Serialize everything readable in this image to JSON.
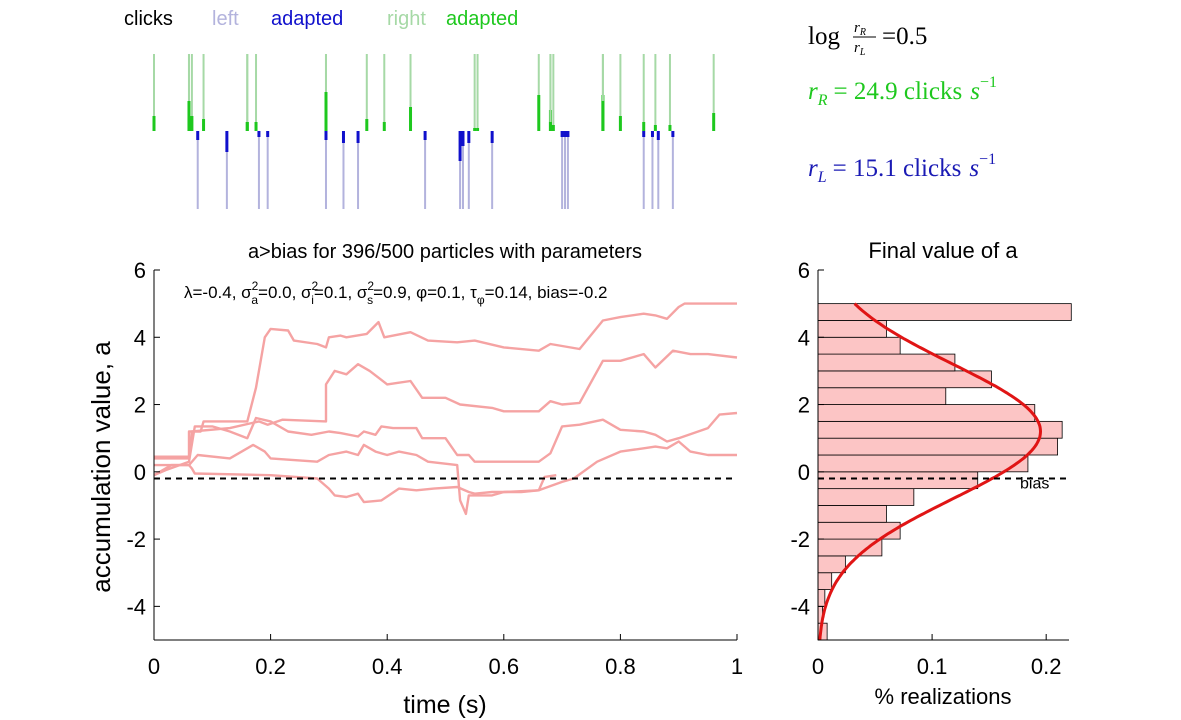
{
  "legend": {
    "clicks": "clicks",
    "left": "left",
    "left_adapted": "adapted",
    "right": "right",
    "right_adapted": "adapted"
  },
  "formulas": {
    "ratio_prefix": "log",
    "ratio_num": "r",
    "ratio_num_sub": "R",
    "ratio_den": "r",
    "ratio_den_sub": "L",
    "ratio_value": "=0.5",
    "rR_sym": "r",
    "rR_sub": "R",
    "rR_value": "= 24.9 clicks",
    "rR_unit": "s",
    "rR_exp": "−1",
    "rL_sym": "r",
    "rL_sub": "L",
    "rL_value": "= 15.1 clicks",
    "rL_unit": "s",
    "rL_exp": "−1"
  },
  "colors": {
    "left_light": "#b3b3dd",
    "left_dark": "#1010cc",
    "right_light": "#a6d9a6",
    "right_dark": "#1ec81e",
    "traj": "#f5a3a3",
    "hist_fill": "#fcc5c5",
    "fit": "#e01515",
    "rR_text": "#1ec81e",
    "rL_text": "#1a1ab4"
  },
  "chart_data": [
    {
      "type": "raster",
      "title": "",
      "x_range": [
        0,
        1
      ],
      "series": [
        {
          "name": "right",
          "clicks": [
            0.0,
            0.06,
            0.06,
            0.065,
            0.085,
            0.16,
            0.16,
            0.175,
            0.295,
            0.295,
            0.365,
            0.395,
            0.44,
            0.55,
            0.555,
            0.66,
            0.68,
            0.68,
            0.685,
            0.77,
            0.77,
            0.8,
            0.84,
            0.86,
            0.885,
            0.96
          ],
          "adapted": [
            0.05,
            0.045,
            0.1,
            0.05,
            0.04,
            0.03,
            0.03,
            0.03,
            0.1,
            0.13,
            0.04,
            0.03,
            0.08,
            0.01,
            0.01,
            0.12,
            0.07,
            0.03,
            0.02,
            0.12,
            0.1,
            0.05,
            0.03,
            0.02,
            0.02,
            0.06
          ]
        },
        {
          "name": "left",
          "clicks": [
            0.075,
            0.125,
            0.18,
            0.195,
            0.295,
            0.325,
            0.35,
            0.465,
            0.525,
            0.53,
            0.54,
            0.58,
            0.7,
            0.705,
            0.71,
            0.84,
            0.855,
            0.865,
            0.89
          ],
          "adapted": [
            0.03,
            0.07,
            0.02,
            0.02,
            0.03,
            0.04,
            0.04,
            0.03,
            0.1,
            0.05,
            0.04,
            0.04,
            0.02,
            0.02,
            0.02,
            0.02,
            0.02,
            0.03,
            0.02
          ]
        }
      ]
    },
    {
      "type": "line",
      "title": "a>bias for 396/500 particles with parameters",
      "subtitle": "λ=-0.4, σ²a=0.0, σ²i=0.1, σ²s=0.9, φ=0.1, τφ=0.14, bias=-0.2",
      "xlabel": "time (s)",
      "ylabel": "accumulation value, a",
      "xlim": [
        0,
        1
      ],
      "ylim": [
        -5,
        6
      ],
      "xticks": [
        "0",
        "0.2",
        "0.4",
        "0.6",
        "0.8",
        "1"
      ],
      "yticks": [
        "-4",
        "-2",
        "0",
        "2",
        "4",
        "6"
      ],
      "bias": -0.2,
      "series": [
        {
          "points": [
            [
              0,
              0.4
            ],
            [
              0.06,
              0.4
            ],
            [
              0.06,
              1.2
            ],
            [
              0.08,
              1.2
            ],
            [
              0.085,
              1.5
            ],
            [
              0.16,
              1.5
            ],
            [
              0.175,
              2.5
            ],
            [
              0.19,
              4.0
            ],
            [
              0.2,
              4.25
            ],
            [
              0.23,
              4.2
            ],
            [
              0.24,
              3.9
            ],
            [
              0.28,
              3.8
            ],
            [
              0.295,
              3.7
            ],
            [
              0.3,
              4.0
            ],
            [
              0.32,
              4.05
            ],
            [
              0.33,
              4.0
            ],
            [
              0.365,
              4.1
            ],
            [
              0.385,
              4.45
            ],
            [
              0.395,
              4.0
            ],
            [
              0.44,
              4.15
            ],
            [
              0.47,
              3.9
            ],
            [
              0.52,
              3.85
            ],
            [
              0.55,
              3.9
            ],
            [
              0.6,
              3.7
            ],
            [
              0.66,
              3.6
            ],
            [
              0.68,
              3.8
            ],
            [
              0.73,
              3.65
            ],
            [
              0.77,
              4.5
            ],
            [
              0.8,
              4.6
            ],
            [
              0.84,
              4.7
            ],
            [
              0.86,
              4.65
            ],
            [
              0.88,
              4.55
            ],
            [
              0.9,
              4.9
            ],
            [
              0.91,
              5.0
            ],
            [
              1.0,
              5.0
            ]
          ]
        },
        {
          "points": [
            [
              0,
              0.45
            ],
            [
              0.06,
              0.45
            ],
            [
              0.065,
              1.2
            ],
            [
              0.13,
              1.3
            ],
            [
              0.18,
              1.5
            ],
            [
              0.195,
              1.4
            ],
            [
              0.22,
              1.55
            ],
            [
              0.295,
              1.5
            ],
            [
              0.295,
              2.6
            ],
            [
              0.31,
              3.0
            ],
            [
              0.33,
              2.9
            ],
            [
              0.35,
              3.2
            ],
            [
              0.37,
              3.0
            ],
            [
              0.4,
              2.6
            ],
            [
              0.44,
              2.7
            ],
            [
              0.46,
              2.2
            ],
            [
              0.5,
              2.2
            ],
            [
              0.525,
              2.0
            ],
            [
              0.58,
              1.9
            ],
            [
              0.6,
              1.8
            ],
            [
              0.66,
              1.8
            ],
            [
              0.68,
              2.1
            ],
            [
              0.7,
              2.0
            ],
            [
              0.73,
              2.05
            ],
            [
              0.77,
              3.3
            ],
            [
              0.8,
              3.3
            ],
            [
              0.84,
              3.5
            ],
            [
              0.86,
              3.1
            ],
            [
              0.89,
              3.6
            ],
            [
              0.92,
              3.5
            ],
            [
              0.95,
              3.5
            ],
            [
              1.0,
              3.4
            ]
          ]
        },
        {
          "points": [
            [
              0,
              -0.1
            ],
            [
              0.02,
              0.05
            ],
            [
              0.06,
              0.3
            ],
            [
              0.07,
              1.35
            ],
            [
              0.1,
              1.35
            ],
            [
              0.13,
              1.2
            ],
            [
              0.16,
              1.0
            ],
            [
              0.175,
              1.6
            ],
            [
              0.2,
              1.5
            ],
            [
              0.23,
              1.2
            ],
            [
              0.27,
              1.1
            ],
            [
              0.3,
              1.2
            ],
            [
              0.32,
              1.15
            ],
            [
              0.35,
              1.05
            ],
            [
              0.36,
              1.2
            ],
            [
              0.38,
              1.1
            ],
            [
              0.39,
              1.35
            ],
            [
              0.41,
              1.3
            ],
            [
              0.45,
              1.3
            ],
            [
              0.46,
              1.0
            ],
            [
              0.5,
              1.0
            ],
            [
              0.52,
              0.5
            ],
            [
              0.54,
              0.5
            ],
            [
              0.55,
              0.3
            ],
            [
              0.58,
              0.3
            ],
            [
              0.66,
              0.3
            ],
            [
              0.68,
              0.55
            ],
            [
              0.7,
              1.35
            ],
            [
              0.73,
              1.4
            ],
            [
              0.77,
              1.55
            ],
            [
              0.8,
              1.25
            ],
            [
              0.84,
              1.2
            ],
            [
              0.86,
              1.1
            ],
            [
              0.88,
              0.9
            ],
            [
              0.9,
              1.0
            ],
            [
              0.95,
              1.3
            ],
            [
              0.97,
              1.7
            ],
            [
              1.0,
              1.75
            ]
          ]
        },
        {
          "points": [
            [
              0,
              0.2
            ],
            [
              0.06,
              0.2
            ],
            [
              0.075,
              0.5
            ],
            [
              0.13,
              0.4
            ],
            [
              0.17,
              0.8
            ],
            [
              0.19,
              0.6
            ],
            [
              0.2,
              0.4
            ],
            [
              0.28,
              0.3
            ],
            [
              0.3,
              0.5
            ],
            [
              0.33,
              0.6
            ],
            [
              0.35,
              0.5
            ],
            [
              0.36,
              0.8
            ],
            [
              0.38,
              0.6
            ],
            [
              0.4,
              0.5
            ],
            [
              0.42,
              0.6
            ],
            [
              0.45,
              0.5
            ],
            [
              0.47,
              0.3
            ],
            [
              0.52,
              0.2
            ],
            [
              0.525,
              -0.85
            ],
            [
              0.535,
              -1.25
            ],
            [
              0.54,
              -0.7
            ],
            [
              0.58,
              -0.7
            ],
            [
              0.6,
              -0.6
            ],
            [
              0.66,
              -0.55
            ],
            [
              0.7,
              -0.3
            ],
            [
              0.72,
              -0.2
            ],
            [
              0.76,
              0.3
            ],
            [
              0.8,
              0.6
            ],
            [
              0.84,
              0.7
            ],
            [
              0.86,
              0.75
            ],
            [
              0.88,
              0.7
            ],
            [
              0.9,
              0.9
            ],
            [
              0.92,
              0.6
            ],
            [
              0.95,
              0.5
            ],
            [
              1.0,
              0.5
            ]
          ]
        },
        {
          "points": [
            [
              0,
              -0.1
            ],
            [
              0.03,
              0.2
            ],
            [
              0.06,
              0.2
            ],
            [
              0.065,
              0.1
            ],
            [
              0.07,
              -0.05
            ],
            [
              0.2,
              -0.1
            ],
            [
              0.28,
              -0.2
            ],
            [
              0.3,
              -0.5
            ],
            [
              0.31,
              -0.7
            ],
            [
              0.33,
              -0.75
            ],
            [
              0.35,
              -0.65
            ],
            [
              0.36,
              -0.9
            ],
            [
              0.39,
              -0.85
            ],
            [
              0.42,
              -0.5
            ],
            [
              0.45,
              -0.55
            ],
            [
              0.48,
              -0.5
            ],
            [
              0.52,
              -0.45
            ],
            [
              0.54,
              -0.6
            ],
            [
              0.55,
              -0.65
            ],
            [
              0.58,
              -0.6
            ],
            [
              0.63,
              -0.6
            ],
            [
              0.66,
              -0.55
            ],
            [
              0.67,
              -0.15
            ],
            [
              0.69,
              -0.1
            ]
          ]
        }
      ]
    },
    {
      "type": "bar",
      "orientation": "horizontal",
      "title": "Final value of a",
      "xlabel": "% realizations",
      "ylabel": "",
      "xlim": [
        0,
        0.22
      ],
      "ylim": [
        -5,
        6
      ],
      "xticks": [
        "0",
        "0.1",
        "0.2"
      ],
      "yticks": [
        "-4",
        "-2",
        "0",
        "2",
        "4",
        "6"
      ],
      "bias_label": "bias",
      "bias": -0.2,
      "bin_width": 0.5,
      "bins_lower_edges": [
        -5.0,
        -4.5,
        -4.0,
        -3.5,
        -3.0,
        -2.5,
        -2.0,
        -1.5,
        -1.0,
        -0.5,
        0.0,
        0.5,
        1.0,
        1.5,
        2.0,
        2.5,
        3.0,
        3.5,
        4.0,
        4.5
      ],
      "values": [
        0.008,
        0.004,
        0.006,
        0.012,
        0.024,
        0.056,
        0.072,
        0.06,
        0.084,
        0.14,
        0.184,
        0.21,
        0.214,
        0.19,
        0.112,
        0.152,
        0.12,
        0.072,
        0.06,
        0.222
      ],
      "fit": {
        "type": "normal",
        "mean": 1.2,
        "sd": 2.0,
        "peak": 0.195
      }
    }
  ]
}
